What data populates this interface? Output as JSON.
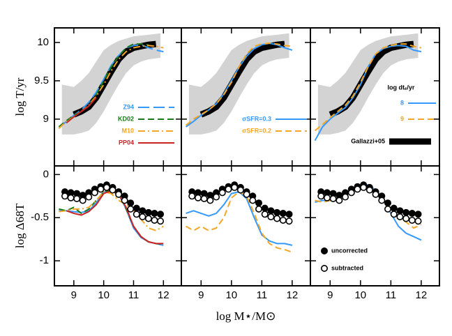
{
  "chart_data": [
    {
      "type": "line",
      "xlim": [
        8.35,
        12.6
      ],
      "ylim": [
        8.39,
        10.19
      ],
      "xticks": [
        9,
        10,
        11,
        12
      ],
      "yticks": [
        9,
        9.5,
        10
      ],
      "xtick_labels": false,
      "ytick_labels": true,
      "ylabel": "log T/yr",
      "x": [
        8.5,
        8.75,
        9,
        9.25,
        9.5,
        9.75,
        10,
        10.25,
        10.5,
        10.75,
        11,
        11.25,
        11.5,
        11.75,
        12
      ],
      "band": {
        "color": "#d3d3d3",
        "x": [
          8.6,
          9,
          9.25,
          9.5,
          9.75,
          10,
          10.25,
          10.5,
          10.75,
          11,
          11.25,
          11.5,
          11.9
        ],
        "lower": [
          8.8,
          8.8,
          8.82,
          8.85,
          8.95,
          9.1,
          9.28,
          9.45,
          9.6,
          9.7,
          9.75,
          9.78,
          9.8
        ],
        "upper": [
          9.45,
          9.42,
          9.5,
          9.6,
          9.75,
          9.9,
          9.97,
          10.02,
          10.05,
          10.08,
          10.09,
          10.1,
          10.12
        ]
      },
      "median": {
        "color": "#000000",
        "values": [
          null,
          null,
          9.06,
          9.1,
          9.16,
          9.28,
          9.45,
          9.62,
          9.78,
          9.88,
          9.93,
          9.95,
          9.97,
          9.98,
          null
        ]
      },
      "series": [
        {
          "name": "Z94",
          "color": "#3399ff",
          "linestyle": "longdash",
          "values": [
            8.88,
            8.97,
            9.05,
            9.12,
            9.22,
            9.35,
            9.52,
            9.7,
            9.83,
            9.93,
            9.96,
            9.97,
            9.93,
            9.9,
            9.88
          ]
        },
        {
          "name": "KD02",
          "color": "#1a7a1a",
          "linestyle": "dashed",
          "values": [
            8.9,
            8.98,
            9.05,
            9.1,
            9.18,
            9.32,
            9.5,
            9.68,
            9.82,
            9.93,
            9.98,
            9.98,
            9.97,
            null,
            null
          ]
        },
        {
          "name": "M10",
          "color": "#f5a623",
          "linestyle": "dashdot",
          "values": [
            8.88,
            8.97,
            9.03,
            9.1,
            9.18,
            9.3,
            9.45,
            9.63,
            9.78,
            9.88,
            9.93,
            9.95,
            9.96,
            9.95,
            9.93
          ]
        },
        {
          "name": "PP04",
          "color": "#cc2222",
          "linestyle": "solid",
          "values": [
            null,
            8.95,
            9.03,
            9.1,
            9.17,
            9.28,
            null,
            null,
            null,
            null,
            null,
            null,
            null,
            null,
            null
          ]
        }
      ]
    },
    {
      "type": "line",
      "xlim": [
        8.35,
        12.6
      ],
      "ylim": [
        8.39,
        10.19
      ],
      "xticks": [
        9,
        10,
        11,
        12
      ],
      "yticks": [
        9,
        9.5,
        10
      ],
      "xtick_labels": false,
      "ytick_labels": false,
      "x": [
        8.5,
        8.75,
        9,
        9.25,
        9.5,
        9.75,
        10,
        10.25,
        10.5,
        10.75,
        11,
        11.25,
        11.5,
        11.75,
        12
      ],
      "band": {
        "color": "#d3d3d3",
        "x": [
          8.6,
          9,
          9.25,
          9.5,
          9.75,
          10,
          10.25,
          10.5,
          10.75,
          11,
          11.25,
          11.5,
          11.9
        ],
        "lower": [
          8.8,
          8.8,
          8.82,
          8.85,
          8.95,
          9.1,
          9.28,
          9.45,
          9.6,
          9.7,
          9.75,
          9.78,
          9.8
        ],
        "upper": [
          9.45,
          9.42,
          9.5,
          9.6,
          9.75,
          9.9,
          9.97,
          10.02,
          10.05,
          10.08,
          10.09,
          10.1,
          10.12
        ]
      },
      "median": {
        "color": "#000000",
        "values": [
          null,
          null,
          9.06,
          9.1,
          9.16,
          9.28,
          9.45,
          9.62,
          9.78,
          9.88,
          9.93,
          9.95,
          9.97,
          9.98,
          null
        ]
      },
      "series": [
        {
          "name": "σSFR=0.3",
          "color": "#3399ff",
          "linestyle": "solid",
          "values": [
            8.9,
            8.97,
            9.05,
            9.12,
            9.2,
            9.33,
            9.5,
            9.68,
            9.82,
            9.92,
            9.97,
            9.99,
            9.97,
            9.93,
            9.9
          ]
        },
        {
          "name": "σSFR=0.2",
          "color": "#f5a623",
          "linestyle": "dashed",
          "values": [
            8.92,
            9.0,
            9.06,
            9.12,
            9.2,
            9.32,
            9.48,
            9.68,
            9.85,
            9.95,
            9.98,
            9.99,
            9.98,
            9.96,
            9.95
          ]
        }
      ]
    },
    {
      "type": "line",
      "xlim": [
        8.35,
        12.6
      ],
      "ylim": [
        8.39,
        10.19
      ],
      "xticks": [
        9,
        10,
        11,
        12
      ],
      "yticks": [
        9,
        9.5,
        10
      ],
      "xtick_labels": false,
      "ytick_labels": false,
      "legend_title": "log dtₑ/yr",
      "x": [
        8.5,
        8.75,
        9,
        9.25,
        9.5,
        9.75,
        10,
        10.25,
        10.5,
        10.75,
        11,
        11.25,
        11.5,
        11.75,
        12
      ],
      "band": {
        "color": "#d3d3d3",
        "x": [
          8.6,
          9,
          9.25,
          9.5,
          9.75,
          10,
          10.25,
          10.5,
          10.75,
          11,
          11.25,
          11.5,
          11.9
        ],
        "lower": [
          8.8,
          8.8,
          8.82,
          8.85,
          8.95,
          9.1,
          9.28,
          9.45,
          9.6,
          9.7,
          9.75,
          9.78,
          9.8
        ],
        "upper": [
          9.45,
          9.42,
          9.5,
          9.6,
          9.75,
          9.9,
          9.97,
          10.02,
          10.05,
          10.08,
          10.09,
          10.1,
          10.12
        ]
      },
      "median": {
        "name": "Gallazzi+05",
        "color": "#000000",
        "values": [
          null,
          null,
          9.06,
          9.1,
          9.16,
          9.28,
          9.45,
          9.62,
          9.78,
          9.88,
          9.93,
          9.95,
          9.97,
          9.98,
          null
        ]
      },
      "series": [
        {
          "name": "8",
          "color": "#3399ff",
          "linestyle": "solid",
          "values": [
            8.72,
            8.9,
            9.0,
            9.08,
            9.15,
            9.28,
            9.45,
            9.68,
            9.85,
            9.92,
            9.95,
            9.96,
            9.95,
            9.9,
            9.88
          ]
        },
        {
          "name": "9",
          "color": "#f5a623",
          "linestyle": "dashed",
          "values": [
            8.85,
            8.93,
            9.02,
            9.1,
            9.18,
            9.3,
            9.48,
            9.68,
            9.85,
            9.93,
            9.96,
            9.98,
            9.98,
            9.95,
            9.93
          ]
        }
      ]
    },
    {
      "type": "line",
      "xlim": [
        8.35,
        12.6
      ],
      "ylim": [
        -1.29,
        0.1
      ],
      "xticks": [
        9,
        10,
        11,
        12
      ],
      "yticks": [
        0,
        -0.5,
        -1
      ],
      "xtick_labels": true,
      "ytick_labels": true,
      "ylabel": "log Δ68T",
      "x": [
        8.5,
        8.75,
        9,
        9.25,
        9.5,
        9.75,
        10,
        10.25,
        10.5,
        10.75,
        11,
        11.25,
        11.5,
        11.75,
        12
      ],
      "series": [
        {
          "color": "#3399ff",
          "linestyle": "solid",
          "values": [
            -0.42,
            -0.42,
            -0.43,
            -0.44,
            -0.42,
            -0.33,
            -0.2,
            -0.18,
            -0.22,
            -0.4,
            -0.62,
            -0.73,
            -0.78,
            -0.8,
            -0.82
          ]
        },
        {
          "color": "#1a7a1a",
          "linestyle": "dashed",
          "values": [
            -0.4,
            -0.42,
            -0.38,
            -0.45,
            -0.4,
            -0.3,
            -0.2,
            -0.18,
            -0.22,
            -0.4,
            -0.6,
            -0.72,
            -0.78,
            -0.8,
            -0.81
          ]
        },
        {
          "color": "#f5a623",
          "linestyle": "dashdot",
          "values": [
            -0.43,
            -0.42,
            -0.4,
            -0.4,
            -0.38,
            -0.3,
            -0.2,
            -0.22,
            -0.3,
            -0.35,
            -0.42,
            -0.52,
            -0.62,
            -0.65,
            -0.6
          ]
        },
        {
          "color": "#cc2222",
          "linestyle": "solid",
          "values": [
            null,
            -0.42,
            -0.45,
            -0.47,
            -0.43,
            -0.35,
            -0.22,
            -0.19,
            -0.23,
            -0.38,
            -0.6,
            -0.72,
            -0.78,
            -0.8,
            -0.8
          ]
        }
      ],
      "points": [
        {
          "marker": "filled",
          "x": [
            8.7,
            8.9,
            9.1,
            9.3,
            9.5,
            9.7,
            9.9,
            10.1,
            10.3,
            10.5,
            10.7,
            10.9,
            11.1,
            11.3,
            11.5,
            11.7,
            11.9
          ],
          "values": [
            -0.2,
            -0.21,
            -0.22,
            -0.24,
            -0.21,
            -0.17,
            -0.14,
            -0.12,
            -0.15,
            -0.2,
            -0.25,
            -0.33,
            -0.39,
            -0.42,
            -0.44,
            -0.45,
            -0.46
          ]
        },
        {
          "marker": "open",
          "x": [
            8.7,
            8.9,
            9.1,
            9.3,
            9.5,
            9.7,
            9.9,
            10.1,
            10.3,
            10.5,
            10.7,
            10.9,
            11.1,
            11.3,
            11.5,
            11.7,
            11.9
          ],
          "values": [
            -0.25,
            -0.27,
            -0.28,
            -0.3,
            -0.26,
            -0.21,
            -0.17,
            -0.15,
            -0.18,
            -0.23,
            -0.3,
            -0.4,
            -0.46,
            -0.49,
            -0.51,
            -0.53,
            -0.54
          ]
        }
      ]
    },
    {
      "type": "line",
      "xlim": [
        8.35,
        12.6
      ],
      "ylim": [
        -1.29,
        0.1
      ],
      "xticks": [
        9,
        10,
        11,
        12
      ],
      "yticks": [
        0,
        -0.5,
        -1
      ],
      "xtick_labels": true,
      "ytick_labels": false,
      "xlabel": "log M⋆/M⊙",
      "x": [
        8.5,
        8.75,
        9,
        9.25,
        9.5,
        9.75,
        10,
        10.25,
        10.5,
        10.75,
        11,
        11.25,
        11.5,
        11.75,
        12
      ],
      "series": [
        {
          "color": "#3399ff",
          "linestyle": "solid",
          "values": [
            -0.45,
            -0.42,
            -0.45,
            -0.48,
            -0.45,
            -0.35,
            -0.22,
            -0.2,
            -0.28,
            -0.5,
            -0.7,
            -0.77,
            -0.8,
            -0.8,
            -0.82
          ]
        },
        {
          "color": "#f5a623",
          "linestyle": "dashed",
          "values": [
            -0.6,
            -0.65,
            -0.6,
            -0.65,
            -0.62,
            -0.5,
            -0.27,
            -0.2,
            -0.25,
            -0.45,
            -0.68,
            -0.8,
            -0.85,
            -0.87,
            -0.9
          ]
        }
      ],
      "points": [
        {
          "marker": "filled",
          "x": [
            8.7,
            8.9,
            9.1,
            9.3,
            9.5,
            9.7,
            9.9,
            10.1,
            10.3,
            10.5,
            10.7,
            10.9,
            11.1,
            11.3,
            11.5,
            11.7,
            11.9
          ],
          "values": [
            -0.2,
            -0.21,
            -0.22,
            -0.24,
            -0.21,
            -0.17,
            -0.14,
            -0.12,
            -0.15,
            -0.2,
            -0.25,
            -0.33,
            -0.39,
            -0.42,
            -0.44,
            -0.45,
            -0.46
          ]
        },
        {
          "marker": "open",
          "x": [
            8.7,
            8.9,
            9.1,
            9.3,
            9.5,
            9.7,
            9.9,
            10.1,
            10.3,
            10.5,
            10.7,
            10.9,
            11.1,
            11.3,
            11.5,
            11.7,
            11.9
          ],
          "values": [
            -0.25,
            -0.27,
            -0.28,
            -0.3,
            -0.26,
            -0.21,
            -0.17,
            -0.15,
            -0.18,
            -0.23,
            -0.3,
            -0.4,
            -0.46,
            -0.49,
            -0.51,
            -0.53,
            -0.54
          ]
        }
      ]
    },
    {
      "type": "line",
      "xlim": [
        8.35,
        12.6
      ],
      "ylim": [
        -1.29,
        0.1
      ],
      "xticks": [
        9,
        10,
        11,
        12
      ],
      "yticks": [
        0,
        -0.5,
        -1
      ],
      "xtick_labels": true,
      "ytick_labels": false,
      "x": [
        8.5,
        8.75,
        9,
        9.25,
        9.5,
        9.75,
        10,
        10.25,
        10.5,
        10.75,
        11,
        11.25,
        11.5,
        11.75,
        12
      ],
      "series": [
        {
          "color": "#3399ff",
          "linestyle": "solid",
          "values": [
            -0.32,
            -0.3,
            -0.3,
            -0.28,
            -0.22,
            -0.17,
            -0.13,
            -0.12,
            -0.18,
            -0.28,
            -0.45,
            -0.6,
            -0.68,
            -0.72,
            -0.76
          ]
        },
        {
          "color": "#f5a623",
          "linestyle": "dashed",
          "values": [
            -0.3,
            -0.32,
            -0.3,
            -0.28,
            -0.22,
            -0.17,
            -0.13,
            -0.14,
            -0.2,
            -0.3,
            -0.4,
            -0.5,
            -0.55,
            -0.62,
            -0.58
          ]
        }
      ],
      "points": [
        {
          "name": "uncorrected",
          "marker": "filled",
          "x": [
            8.7,
            8.9,
            9.1,
            9.3,
            9.5,
            9.7,
            9.9,
            10.1,
            10.3,
            10.5,
            10.7,
            10.9,
            11.1,
            11.3,
            11.5,
            11.7,
            11.9
          ],
          "values": [
            -0.2,
            -0.21,
            -0.22,
            -0.24,
            -0.21,
            -0.17,
            -0.14,
            -0.12,
            -0.15,
            -0.2,
            -0.25,
            -0.33,
            -0.39,
            -0.42,
            -0.44,
            -0.45,
            -0.46
          ]
        },
        {
          "name": "subtracted",
          "marker": "open",
          "x": [
            8.7,
            8.9,
            9.1,
            9.3,
            9.5,
            9.7,
            9.9,
            10.1,
            10.3,
            10.5,
            10.7,
            10.9,
            11.1,
            11.3,
            11.5,
            11.7,
            11.9
          ],
          "values": [
            -0.25,
            -0.27,
            -0.28,
            -0.3,
            -0.26,
            -0.21,
            -0.17,
            -0.15,
            -0.18,
            -0.23,
            -0.3,
            -0.4,
            -0.46,
            -0.49,
            -0.51,
            -0.53,
            -0.54
          ]
        }
      ]
    }
  ]
}
